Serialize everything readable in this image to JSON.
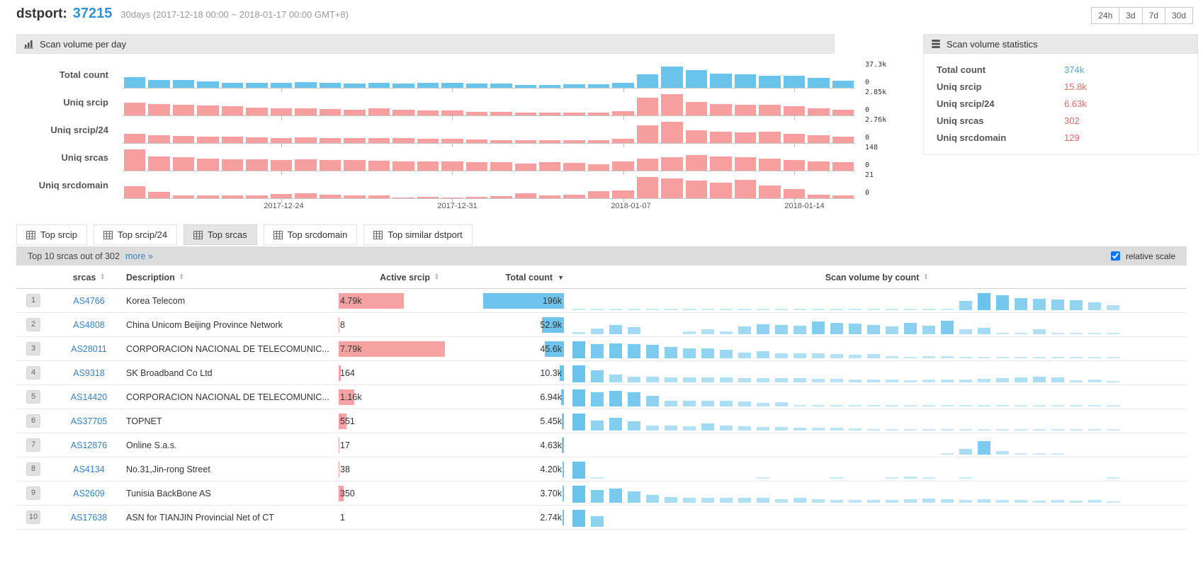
{
  "header": {
    "title_label": "dstport:",
    "title_value": "37215",
    "subtitle": "30days (2017-12-18 00:00 ~ 2018-01-17 00:00 GMT+8)",
    "range_buttons": [
      "24h",
      "3d",
      "7d",
      "30d"
    ]
  },
  "scan_volume_panel": {
    "title": "Scan volume per day"
  },
  "chart_data": {
    "type": "bar",
    "title": "Scan volume per day",
    "x_range": [
      "2017-12-18",
      "2018-01-16"
    ],
    "days": 30,
    "x_tick_labels": [
      "2017-12-24",
      "2017-12-31",
      "2018-01-07",
      "2018-01-14"
    ],
    "x_tick_indices": [
      6,
      13,
      20,
      27
    ],
    "grid": false,
    "series": [
      {
        "name": "Total count",
        "ymax_label": "37.3k",
        "ymin_label": "0",
        "color": "#69c3eb",
        "values_pct": [
          50,
          38,
          36,
          30,
          25,
          24,
          22,
          27,
          23,
          20,
          23,
          20,
          22,
          22,
          20,
          20,
          15,
          14,
          18,
          16,
          25,
          65,
          100,
          85,
          68,
          62,
          58,
          57,
          48,
          33
        ]
      },
      {
        "name": "Uniq srcip",
        "ymax_label": "2.85k",
        "ymin_label": "0",
        "color": "#f79f9f",
        "values_pct": [
          60,
          52,
          50,
          46,
          42,
          38,
          35,
          33,
          30,
          28,
          32,
          26,
          24,
          22,
          18,
          17,
          15,
          14,
          14,
          15,
          20,
          85,
          100,
          62,
          52,
          50,
          50,
          42,
          35,
          28
        ]
      },
      {
        "name": "Uniq srcip/24",
        "ymax_label": "2.76k",
        "ymin_label": "0",
        "color": "#f79f9f",
        "values_pct": [
          45,
          36,
          34,
          31,
          29,
          27,
          25,
          26,
          25,
          23,
          25,
          23,
          21,
          19,
          16,
          15,
          13,
          13,
          13,
          13,
          19,
          85,
          100,
          60,
          52,
          50,
          52,
          44,
          37,
          30
        ]
      },
      {
        "name": "Uniq srcas",
        "ymax_label": "148",
        "ymin_label": "0",
        "color": "#f79f9f",
        "values_pct": [
          100,
          68,
          62,
          58,
          55,
          52,
          50,
          53,
          50,
          49,
          46,
          44,
          44,
          42,
          40,
          39,
          34,
          39,
          36,
          31,
          43,
          56,
          63,
          72,
          66,
          62,
          56,
          49,
          43,
          40
        ]
      },
      {
        "name": "Uniq srcdomain",
        "ymax_label": "21",
        "ymin_label": "0",
        "color": "#f79f9f",
        "values_pct": [
          57,
          29,
          15,
          15,
          14,
          15,
          19,
          23,
          18,
          12,
          15,
          5,
          8,
          5,
          6,
          10,
          22,
          12,
          18,
          35,
          38,
          100,
          92,
          82,
          72,
          86,
          60,
          43,
          18,
          12
        ]
      }
    ]
  },
  "stats_panel": {
    "title": "Scan volume statistics",
    "rows": [
      {
        "label": "Total count",
        "value": "374k",
        "color": "#53a7e0"
      },
      {
        "label": "Uniq srcip",
        "value": "15.8k",
        "color": "#e06c6c"
      },
      {
        "label": "Uniq srcip/24",
        "value": "6.63k",
        "color": "#e06c6c"
      },
      {
        "label": "Uniq srcas",
        "value": "302",
        "color": "#e06c6c"
      },
      {
        "label": "Uniq srcdomain",
        "value": "129",
        "color": "#e06c6c"
      }
    ]
  },
  "tabs": [
    {
      "label": "Top srcip",
      "active": false
    },
    {
      "label": "Top srcip/24",
      "active": false
    },
    {
      "label": "Top srcas",
      "active": true
    },
    {
      "label": "Top srcdomain",
      "active": false
    },
    {
      "label": "Top similar dstport",
      "active": false
    }
  ],
  "table_toolbar": {
    "summary": "Top 10 srcas out of 302",
    "more_label": "more »",
    "relative_scale_label": "relative scale",
    "relative_scale_checked": true
  },
  "table": {
    "columns": [
      {
        "label": "srcas",
        "sort": "both"
      },
      {
        "label": "Description",
        "sort": "both"
      },
      {
        "label": "Active srcip",
        "sort": "both"
      },
      {
        "label": "Total count",
        "sort": "desc"
      },
      {
        "label": "Scan volume by count",
        "sort": "both"
      }
    ],
    "rows": [
      {
        "rank": "1",
        "srcas": "AS4766",
        "description": "Korea Telecom",
        "active_srcip": "4.79k",
        "active_pct": 61.5,
        "total_count": "196k",
        "total_pct": 100,
        "spark_pct": [
          4,
          4,
          4,
          4,
          4,
          4,
          4,
          4,
          4,
          4,
          4,
          4,
          4,
          4,
          4,
          4,
          4,
          4,
          4,
          4,
          5,
          55,
          100,
          88,
          70,
          65,
          62,
          58,
          45,
          28
        ]
      },
      {
        "rank": "2",
        "srcas": "AS4808",
        "description": "China Unicom Beijing Province Network",
        "active_srcip": "8",
        "active_pct": 0.1,
        "total_count": "52.9k",
        "total_pct": 27,
        "spark_pct": [
          12,
          35,
          55,
          42,
          0,
          0,
          15,
          28,
          18,
          45,
          60,
          55,
          50,
          75,
          68,
          62,
          55,
          45,
          68,
          50,
          80,
          30,
          38,
          6,
          6,
          28,
          8,
          8,
          6,
          8
        ]
      },
      {
        "rank": "3",
        "srcas": "AS28011",
        "description": "CORPORACION NACIONAL DE TELECOMUNIC...",
        "active_srcip": "7.79k",
        "active_pct": 100,
        "total_count": "45.6k",
        "total_pct": 23.3,
        "spark_pct": [
          100,
          85,
          88,
          85,
          78,
          68,
          58,
          58,
          48,
          35,
          40,
          30,
          28,
          28,
          25,
          20,
          24,
          12,
          10,
          12,
          12,
          10,
          8,
          10,
          8,
          8,
          10,
          8,
          6,
          4
        ]
      },
      {
        "rank": "4",
        "srcas": "AS9318",
        "description": "SK Broadband Co Ltd",
        "active_srcip": "164",
        "active_pct": 2.1,
        "total_count": "10.3k",
        "total_pct": 5.3,
        "spark_pct": [
          100,
          70,
          45,
          35,
          32,
          30,
          30,
          28,
          30,
          25,
          25,
          25,
          25,
          22,
          20,
          18,
          18,
          15,
          12,
          15,
          18,
          18,
          22,
          25,
          30,
          35,
          30,
          12,
          15,
          8
        ]
      },
      {
        "rank": "5",
        "srcas": "AS14420",
        "description": "CORPORACION NACIONAL DE TELECOMUNIC...",
        "active_srcip": "1.16k",
        "active_pct": 14.9,
        "total_count": "6.94k",
        "total_pct": 3.5,
        "spark_pct": [
          100,
          85,
          90,
          85,
          62,
          35,
          35,
          35,
          33,
          30,
          20,
          25,
          10,
          10,
          10,
          10,
          10,
          8,
          8,
          8,
          8,
          6,
          6,
          6,
          6,
          6,
          6,
          4,
          4,
          4
        ]
      },
      {
        "rank": "6",
        "srcas": "AS37705",
        "description": "TOPNET",
        "active_srcip": "551",
        "active_pct": 7.1,
        "total_count": "5.45k",
        "total_pct": 2.8,
        "spark_pct": [
          100,
          60,
          75,
          55,
          30,
          28,
          25,
          40,
          30,
          25,
          22,
          20,
          18,
          15,
          15,
          12,
          8,
          6,
          6,
          8,
          8,
          8,
          8,
          10,
          10,
          10,
          10,
          10,
          8,
          2
        ]
      },
      {
        "rank": "7",
        "srcas": "AS12876",
        "description": "Online S.a.s.",
        "active_srcip": "17",
        "active_pct": 0.2,
        "total_count": "4.63k",
        "total_pct": 2.4,
        "spark_pct": [
          0,
          0,
          0,
          0,
          0,
          0,
          0,
          0,
          0,
          0,
          0,
          0,
          0,
          0,
          0,
          0,
          0,
          0,
          0,
          0,
          10,
          35,
          80,
          22,
          3,
          3,
          3,
          0,
          0,
          0
        ]
      },
      {
        "rank": "8",
        "srcas": "AS4134",
        "description": "No.31,Jin-rong Street",
        "active_srcip": "38",
        "active_pct": 0.5,
        "total_count": "4.20k",
        "total_pct": 2.1,
        "spark_pct": [
          100,
          8,
          0,
          0,
          0,
          0,
          0,
          0,
          0,
          0,
          3,
          0,
          0,
          0,
          10,
          0,
          0,
          6,
          14,
          3,
          0,
          3,
          0,
          0,
          0,
          0,
          0,
          0,
          0,
          3
        ]
      },
      {
        "rank": "9",
        "srcas": "AS2609",
        "description": "Tunisia BackBone AS",
        "active_srcip": "350",
        "active_pct": 4.5,
        "total_count": "3.70k",
        "total_pct": 1.9,
        "spark_pct": [
          100,
          75,
          85,
          65,
          45,
          35,
          30,
          30,
          30,
          28,
          30,
          22,
          28,
          22,
          18,
          15,
          18,
          18,
          22,
          25,
          20,
          15,
          22,
          15,
          15,
          12,
          15,
          12,
          15,
          10
        ]
      },
      {
        "rank": "10",
        "srcas": "AS17638",
        "description": "ASN for TIANJIN Provincial Net of CT",
        "active_srcip": "1",
        "active_pct": 0,
        "total_count": "2.74k",
        "total_pct": 1.4,
        "spark_pct": [
          100,
          62,
          0,
          0,
          0,
          0,
          0,
          0,
          0,
          0,
          0,
          0,
          0,
          0,
          0,
          0,
          0,
          0,
          0,
          0,
          0,
          0,
          0,
          0,
          0,
          0,
          0,
          0,
          0,
          0
        ]
      }
    ]
  },
  "colors": {
    "bar_blue": "#69c3eb",
    "bar_pink": "#f79f9f",
    "link_blue": "#3a7fc1",
    "stat_blue": "#53a7e0",
    "stat_red": "#e06c6c"
  }
}
